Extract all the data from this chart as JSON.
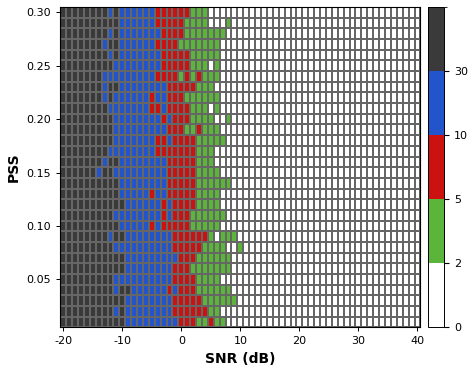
{
  "snr_min": -20,
  "snr_max": 40,
  "snr_step": 1,
  "pss_min": 0.01,
  "pss_max": 0.3,
  "pss_step": 0.01,
  "xlabel": "SNR (dB)",
  "ylabel": "PSS",
  "color_levels": [
    0,
    2,
    5,
    10,
    30,
    200
  ],
  "colors": [
    "#ffffff",
    "#5ab53a",
    "#cc1111",
    "#2255cc",
    "#3a3a3a"
  ],
  "colorbar_ticks": [
    0,
    2,
    5,
    10,
    30
  ],
  "colorbar_ticklabels": [
    "0",
    "2",
    "5",
    "10",
    "30"
  ],
  "figsize": [
    4.74,
    3.73
  ],
  "dpi": 100,
  "label_fontsize": 10,
  "tick_fontsize": 8,
  "grid_color": "#666666",
  "grid_linewidth": 0.35,
  "random_seed": 7,
  "noise_scale": 1.2,
  "snr_thresh_gray_blue": -13.0,
  "snr_thresh_blue_red": -4.5,
  "snr_thresh_red_green": 0.5,
  "snr_thresh_green_white": 5.5,
  "pss_shift_scale": 3.0
}
